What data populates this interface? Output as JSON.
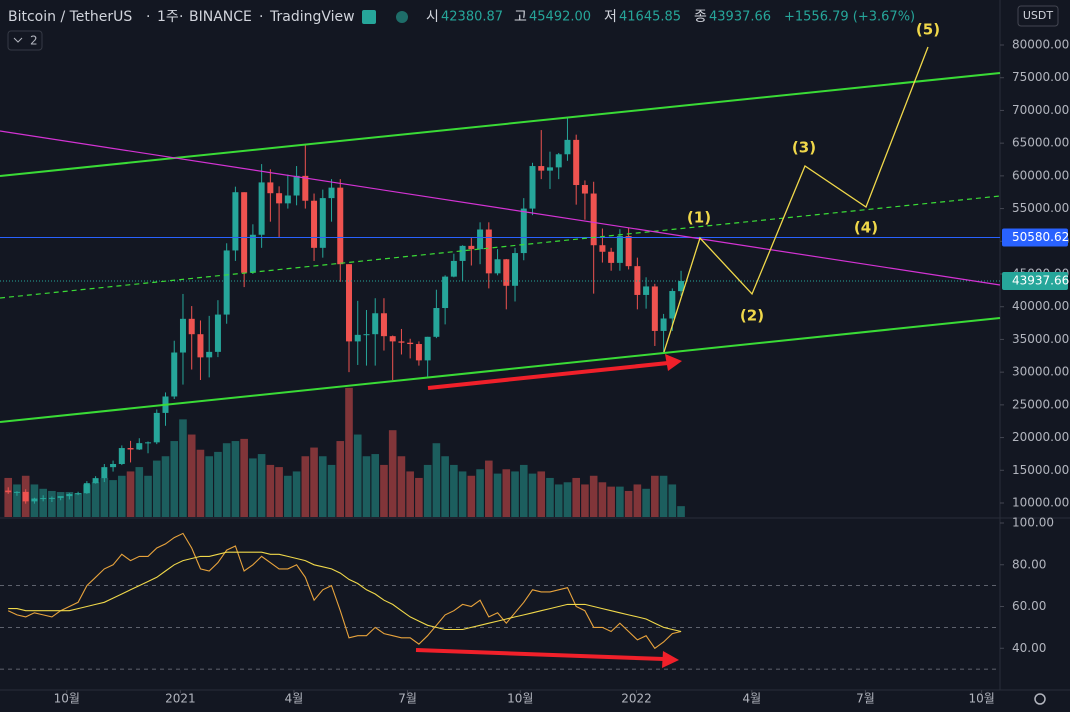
{
  "chart_data": [
    {
      "type": "candlestick",
      "symbol": "Bitcoin / TetherUS",
      "interval": "1주",
      "exchange": "BINANCE",
      "source": "TradingView",
      "legend": {
        "open": "시",
        "high": "고",
        "low": "저",
        "close": "종",
        "high_label": "45492.00",
        "change": "+1556.79 (+3.67%)"
      },
      "indicator_count": "2",
      "currency": "USDT",
      "up_color": "#26a69a",
      "down_color": "#ef5350",
      "open": [
        11900,
        11650,
        11700,
        10250,
        10680,
        10750,
        10780,
        11050,
        11370,
        11500,
        13030,
        13800,
        15480,
        15960,
        18400,
        18180,
        19150,
        19270,
        23770,
        26280,
        33000,
        38150,
        35800,
        32260,
        33100,
        38800,
        48600,
        57500,
        45200,
        51000,
        59000,
        57350,
        55800,
        57000,
        60000,
        56200,
        49000,
        56600,
        58200,
        46500,
        34700,
        35700,
        35800,
        39000,
        35500,
        34700,
        34500,
        34300,
        31800,
        35400,
        39800,
        44600,
        47000,
        49300,
        48800,
        51800,
        45100,
        47250,
        43200,
        48200,
        55000,
        61500,
        60800,
        61300,
        63300,
        65500,
        58600,
        57300,
        49400,
        48400,
        46700,
        50800,
        46200,
        41800,
        43100,
        36300,
        38200,
        42380.87
      ],
      "high": [
        12400,
        11800,
        12100,
        10800,
        11180,
        10990,
        10950,
        11500,
        11720,
        13350,
        14100,
        15960,
        16480,
        18800,
        19500,
        19900,
        19400,
        24300,
        26900,
        34800,
        41950,
        40100,
        37900,
        38600,
        41000,
        49700,
        58350,
        57500,
        52600,
        61800,
        61000,
        58400,
        60200,
        61500,
        64850,
        57300,
        57900,
        59500,
        59500,
        46500,
        40900,
        39500,
        41300,
        41300,
        35600,
        36600,
        35100,
        34700,
        35400,
        42600,
        44800,
        48100,
        49400,
        50500,
        52900,
        52900,
        48800,
        47300,
        49000,
        56600,
        62000,
        67000,
        63700,
        63500,
        69000,
        66300,
        59300,
        59100,
        51950,
        49000,
        51850,
        52100,
        47500,
        44500,
        43500,
        38900,
        42800,
        45492
      ],
      "low": [
        11400,
        11100,
        9900,
        9900,
        10250,
        10150,
        10420,
        10550,
        11200,
        11400,
        12950,
        13200,
        14800,
        15800,
        16200,
        18100,
        17600,
        19000,
        21800,
        25900,
        28100,
        30400,
        28800,
        29200,
        32300,
        37400,
        47000,
        43000,
        45000,
        49000,
        53000,
        50500,
        55000,
        55500,
        55000,
        47000,
        47500,
        53000,
        43800,
        30000,
        31100,
        31000,
        31000,
        33300,
        28800,
        32700,
        32100,
        31000,
        29300,
        35200,
        37300,
        44500,
        43900,
        46300,
        46500,
        42800,
        44800,
        39600,
        40800,
        47100,
        54000,
        59500,
        58000,
        59500,
        62300,
        55600,
        53300,
        42000,
        46750,
        45500,
        45500,
        45700,
        39600,
        39700,
        34000,
        32900,
        36300,
        41645.85
      ],
      "close": [
        11650,
        11700,
        10250,
        10680,
        10750,
        10780,
        11050,
        11370,
        11500,
        13030,
        13800,
        15480,
        15960,
        18400,
        18180,
        19150,
        19270,
        23770,
        26280,
        33000,
        38150,
        35800,
        32260,
        33100,
        38800,
        48600,
        57500,
        45200,
        51000,
        59000,
        57350,
        55800,
        57000,
        60000,
        56200,
        49000,
        56600,
        58200,
        46500,
        34700,
        35700,
        35800,
        39000,
        35500,
        34700,
        34500,
        34300,
        31800,
        35400,
        39800,
        44600,
        47000,
        49300,
        48800,
        51800,
        45100,
        47250,
        43200,
        48200,
        55000,
        61500,
        60800,
        61300,
        63300,
        65500,
        58600,
        57300,
        49400,
        48400,
        46700,
        50800,
        46200,
        41800,
        43100,
        36300,
        38200,
        42400,
        43937.66
      ],
      "volume": [
        360000,
        300000,
        380000,
        300000,
        260000,
        240000,
        230000,
        230000,
        220000,
        300000,
        320000,
        360000,
        340000,
        380000,
        420000,
        460000,
        380000,
        520000,
        560000,
        700000,
        900000,
        760000,
        620000,
        560000,
        600000,
        680000,
        700000,
        720000,
        540000,
        580000,
        480000,
        460000,
        380000,
        420000,
        560000,
        640000,
        560000,
        480000,
        700000,
        1190000,
        760000,
        560000,
        580000,
        480000,
        800000,
        560000,
        420000,
        360000,
        480000,
        680000,
        560000,
        480000,
        420000,
        380000,
        440000,
        520000,
        400000,
        440000,
        420000,
        480000,
        400000,
        420000,
        360000,
        300000,
        320000,
        360000,
        300000,
        380000,
        320000,
        280000,
        280000,
        240000,
        300000,
        260000,
        380000,
        380000,
        300000,
        100000
      ],
      "volume_ylim": [
        0,
        4765000
      ],
      "hline": 50580.62,
      "annotations": [
        "(1)",
        "(2)",
        "(3)",
        "(4)",
        "(5)"
      ],
      "xlim": [
        -0.94,
        113.5
      ],
      "xticks": [
        {
          "value": 6.7,
          "label": "10월"
        },
        {
          "value": 19.7,
          "label": "2021"
        },
        {
          "value": 32.7,
          "label": "4월"
        },
        {
          "value": 45.7,
          "label": "7월"
        },
        {
          "value": 58.6,
          "label": "10월"
        },
        {
          "value": 71.9,
          "label": "2022"
        },
        {
          "value": 85.1,
          "label": "4월"
        },
        {
          "value": 98.1,
          "label": "7월"
        },
        {
          "value": 111.4,
          "label": "10월"
        }
      ],
      "ylim": [
        7860,
        86880
      ],
      "yticks": [
        {
          "value": 10000,
          "label": "10000.00"
        },
        {
          "value": 15000,
          "label": "15000.00"
        },
        {
          "value": 20000,
          "label": "20000.00"
        },
        {
          "value": 25000,
          "label": "25000.00"
        },
        {
          "value": 30000,
          "label": "30000.00"
        },
        {
          "value": 35000,
          "label": "35000.00"
        },
        {
          "value": 40000,
          "label": "40000.00"
        },
        {
          "value": 45000,
          "label": "45000.00"
        },
        {
          "value": 50000,
          "label": "50000.00"
        },
        {
          "value": 55000,
          "label": "55000.00"
        },
        {
          "value": 60000,
          "label": "60000.00"
        },
        {
          "value": 65000,
          "label": "65000.00"
        },
        {
          "value": 70000,
          "label": "70000.00"
        },
        {
          "value": 75000,
          "label": "75000.00"
        },
        {
          "value": 80000,
          "label": "80000.00"
        }
      ]
    },
    {
      "type": "line",
      "series": [
        {
          "color": "#e8a33c",
          "values": [
            58,
            56,
            55,
            57,
            56,
            55,
            58,
            60,
            62,
            70,
            74,
            78,
            80,
            85,
            82,
            84,
            84,
            88,
            90,
            93,
            95,
            88,
            78,
            77,
            81,
            87,
            89,
            77,
            80,
            84,
            81,
            78,
            78,
            80,
            74,
            63,
            68,
            70,
            58,
            45,
            46,
            46,
            50,
            47,
            46,
            45,
            45,
            42,
            46,
            51,
            56,
            58,
            61,
            60,
            63,
            55,
            57,
            52,
            57,
            62,
            68,
            67,
            67,
            68,
            69,
            60,
            58,
            50,
            50,
            48,
            52,
            48,
            44,
            46,
            40,
            43,
            47,
            48
          ]
        },
        {
          "color": "#f0d84a",
          "values": [
            59,
            59,
            58,
            58,
            58,
            58,
            58,
            58,
            59,
            60,
            61,
            62,
            64,
            66,
            68,
            70,
            72,
            74,
            77,
            80,
            82,
            83,
            84,
            84,
            85,
            86,
            86,
            86,
            86,
            86,
            85,
            85,
            84,
            83,
            82,
            80,
            79,
            78,
            76,
            73,
            71,
            68,
            66,
            63,
            61,
            58,
            55,
            53,
            51,
            50,
            49,
            49,
            49,
            50,
            51,
            52,
            53,
            54,
            55,
            56,
            57,
            58,
            59,
            60,
            61,
            61,
            61,
            60,
            59,
            58,
            57,
            56,
            55,
            54,
            52,
            50,
            49,
            48
          ]
        }
      ],
      "levels": [
        70,
        50,
        30
      ],
      "ylim": [
        20,
        100
      ],
      "yticks": [
        {
          "value": 40,
          "label": "40.00"
        },
        {
          "value": 60,
          "label": "60.00"
        },
        {
          "value": 80,
          "label": "80.00"
        },
        {
          "value": 100,
          "label": "100.00"
        }
      ]
    }
  ]
}
